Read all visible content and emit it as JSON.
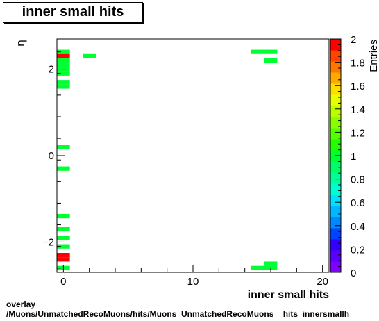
{
  "title": "inner small hits",
  "footer": {
    "line1": "overlay",
    "line2": "/Muons/UnmatchedRecoMuons/hits/Muons_UnmatchedRecoMuons__hits_innersmallh"
  },
  "chart_data": {
    "type": "heatmap",
    "title": "inner small hits",
    "xlabel": "inner small hits",
    "ylabel": "η",
    "zlabel": "Entries",
    "xlim": [
      -0.5,
      20.5
    ],
    "ylim": [
      -2.7,
      2.7
    ],
    "zlim": [
      0,
      2
    ],
    "x_ticks": [
      0,
      10,
      20
    ],
    "y_ticks": [
      -2,
      0,
      2
    ],
    "z_ticks": [
      0,
      0.2,
      0.4,
      0.6,
      0.8,
      1,
      1.2,
      1.4,
      1.6,
      1.8,
      2
    ],
    "x_tick_labels": [
      "0",
      "10",
      "20"
    ],
    "y_tick_labels": [
      "−2",
      "0",
      "2"
    ],
    "z_tick_labels": [
      "0",
      "0.2",
      "0.4",
      "0.6",
      "0.8",
      "1",
      "1.2",
      "1.4",
      "1.6",
      "1.8",
      "2"
    ],
    "cells": [
      {
        "x0": -0.5,
        "x1": 0.5,
        "y0": 2.35,
        "y1": 2.45,
        "value": 1
      },
      {
        "x0": -0.5,
        "x1": 0.5,
        "y0": 2.25,
        "y1": 2.35,
        "value": 2
      },
      {
        "x0": -0.5,
        "x1": 0.5,
        "y0": 2.15,
        "y1": 2.25,
        "value": 1
      },
      {
        "x0": -0.5,
        "x1": 0.5,
        "y0": 2.05,
        "y1": 2.15,
        "value": 1
      },
      {
        "x0": -0.5,
        "x1": 0.5,
        "y0": 1.95,
        "y1": 2.05,
        "value": 1
      },
      {
        "x0": -0.5,
        "x1": 0.5,
        "y0": 1.85,
        "y1": 1.95,
        "value": 1
      },
      {
        "x0": -0.5,
        "x1": 0.5,
        "y0": 1.65,
        "y1": 1.75,
        "value": 1
      },
      {
        "x0": -0.5,
        "x1": 0.5,
        "y0": 1.55,
        "y1": 1.65,
        "value": 1
      },
      {
        "x0": -0.5,
        "x1": 0.5,
        "y0": 0.15,
        "y1": 0.25,
        "value": 1
      },
      {
        "x0": -0.5,
        "x1": 0.5,
        "y0": -0.35,
        "y1": -0.25,
        "value": 1
      },
      {
        "x0": -0.5,
        "x1": 0.5,
        "y0": -1.45,
        "y1": -1.35,
        "value": 1
      },
      {
        "x0": -0.5,
        "x1": 0.5,
        "y0": -1.75,
        "y1": -1.65,
        "value": 1
      },
      {
        "x0": -0.5,
        "x1": 0.5,
        "y0": -1.95,
        "y1": -1.85,
        "value": 1
      },
      {
        "x0": -0.5,
        "x1": 0.5,
        "y0": -2.15,
        "y1": -2.05,
        "value": 1
      },
      {
        "x0": -0.5,
        "x1": 0.5,
        "y0": -2.35,
        "y1": -2.25,
        "value": 2
      },
      {
        "x0": -0.5,
        "x1": 0.5,
        "y0": -2.45,
        "y1": -2.35,
        "value": 2
      },
      {
        "x0": -0.5,
        "x1": 0.5,
        "y0": -2.65,
        "y1": -2.55,
        "value": 1
      },
      {
        "x0": 1.5,
        "x1": 2.5,
        "y0": 2.25,
        "y1": 2.35,
        "value": 1
      },
      {
        "x0": 14.5,
        "x1": 16.5,
        "y0": 2.35,
        "y1": 2.45,
        "value": 1
      },
      {
        "x0": 15.5,
        "x1": 16.5,
        "y0": 2.15,
        "y1": 2.25,
        "value": 1
      },
      {
        "x0": 15.5,
        "x1": 16.5,
        "y0": -2.55,
        "y1": -2.45,
        "value": 1
      },
      {
        "x0": 14.5,
        "x1": 16.5,
        "y0": -2.65,
        "y1": -2.55,
        "value": 1
      }
    ]
  },
  "colors": {
    "palette": [
      "#7f00ff",
      "#5a00ff",
      "#3300ff",
      "#0044ff",
      "#0088ff",
      "#00b8ff",
      "#00e0ff",
      "#00ffd0",
      "#00ff9a",
      "#00ff66",
      "#00ff33",
      "#22ff00",
      "#55ff00",
      "#88ff00",
      "#bbff00",
      "#e8ff00",
      "#ffdd00",
      "#ffaa00",
      "#ff7700",
      "#ff4400",
      "#ff0000"
    ]
  }
}
